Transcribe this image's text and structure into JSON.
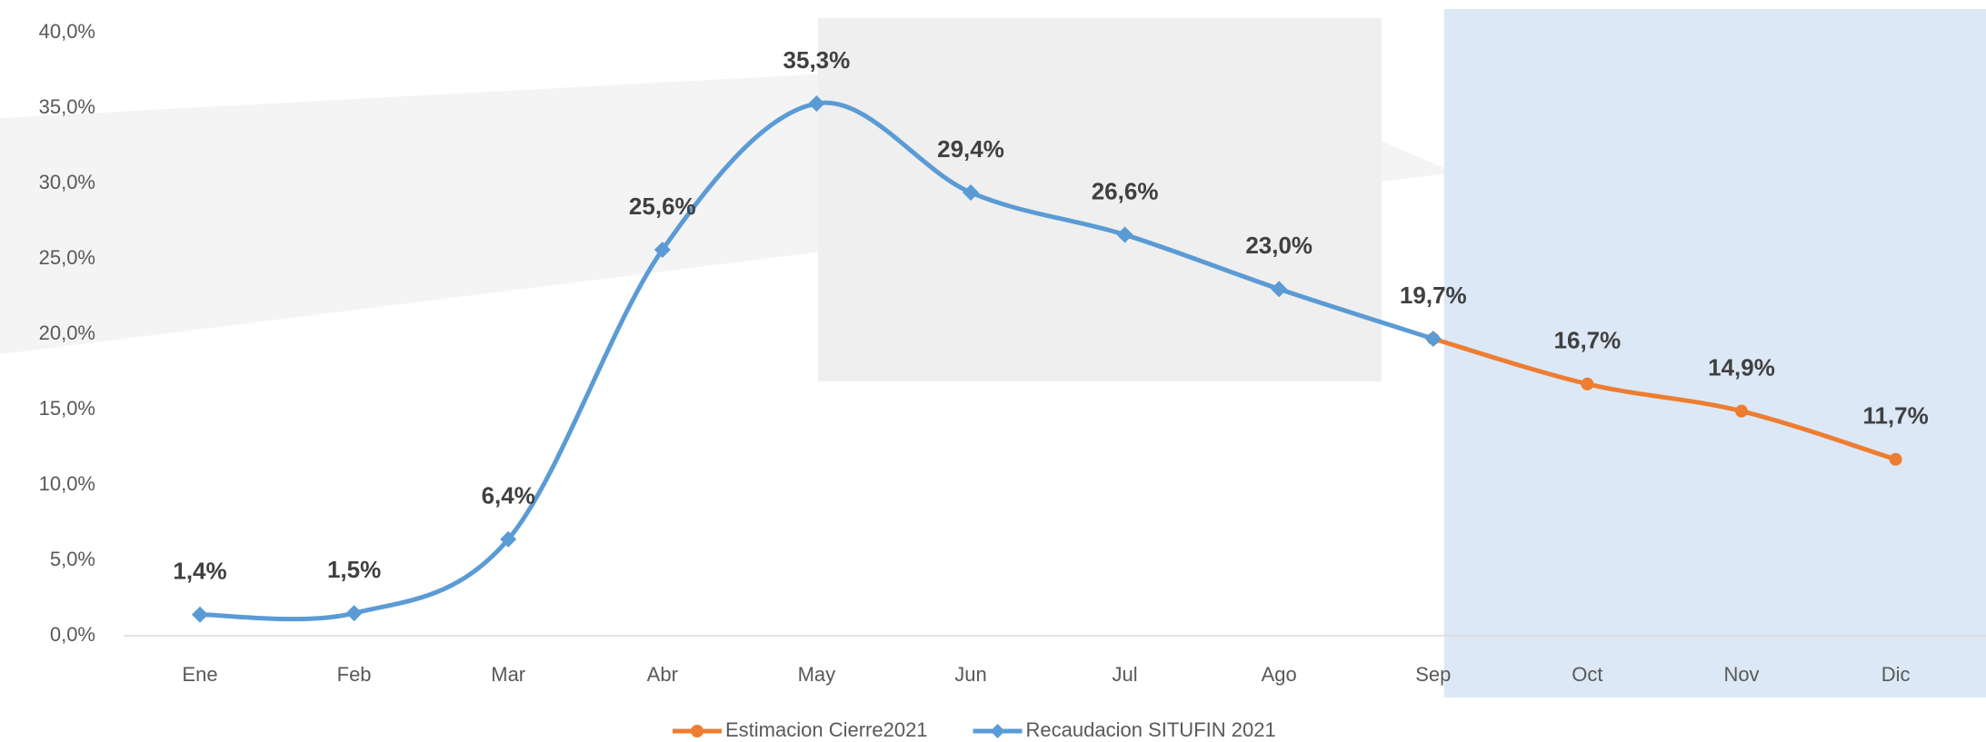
{
  "chart_data": {
    "type": "line",
    "categories": [
      "Ene",
      "Feb",
      "Mar",
      "Abr",
      "May",
      "Jun",
      "Jul",
      "Ago",
      "Sep",
      "Oct",
      "Nov",
      "Dic"
    ],
    "series": [
      {
        "name": "Estimacion Cierre2021",
        "color": "#ed7d31",
        "marker": "circle",
        "values": [
          null,
          null,
          null,
          null,
          null,
          null,
          null,
          null,
          19.7,
          16.7,
          14.9,
          11.7
        ],
        "value_labels": [
          null,
          null,
          null,
          null,
          null,
          null,
          null,
          null,
          null,
          "16,7%",
          "14,9%",
          "11,7%"
        ]
      },
      {
        "name": "Recaudacion SITUFIN 2021",
        "color": "#5b9bd5",
        "marker": "diamond",
        "values": [
          1.4,
          1.5,
          6.4,
          25.6,
          35.3,
          29.4,
          26.6,
          23.0,
          19.7,
          null,
          null,
          null
        ],
        "value_labels": [
          "1,4%",
          "1,5%",
          "6,4%",
          "25,6%",
          "35,3%",
          "29,4%",
          "26,6%",
          "23,0%",
          "19,7%",
          null,
          null,
          null
        ]
      }
    ],
    "ylim": [
      0,
      40
    ],
    "yticks": [
      {
        "value": 0,
        "label": "0,0%"
      },
      {
        "value": 5,
        "label": "5,0%"
      },
      {
        "value": 10,
        "label": "10,0%"
      },
      {
        "value": 15,
        "label": "15,0%"
      },
      {
        "value": 20,
        "label": "20,0%"
      },
      {
        "value": 25,
        "label": "25,0%"
      },
      {
        "value": 30,
        "label": "30,0%"
      },
      {
        "value": 35,
        "label": "35,0%"
      },
      {
        "value": 40,
        "label": "40,0%"
      }
    ],
    "smooth": true,
    "legend": "bottom",
    "shaded_region_color": "#dce8f5"
  }
}
